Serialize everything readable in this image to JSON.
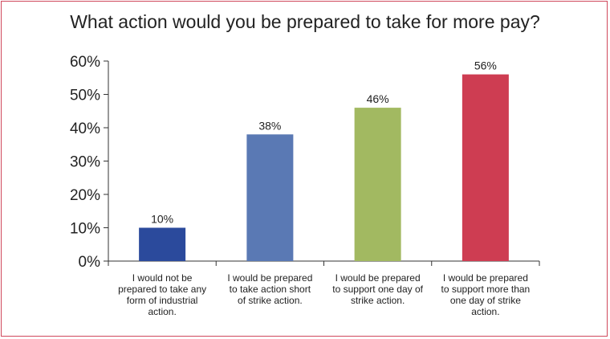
{
  "chart_data": {
    "type": "bar",
    "title": "What action would you be prepared to take for more pay?",
    "xlabel": "",
    "ylabel": "",
    "ylim": [
      0,
      60
    ],
    "yticks": [
      "0%",
      "10%",
      "20%",
      "30%",
      "40%",
      "50%",
      "60%"
    ],
    "categories": [
      "I would not be prepared to take any form of industrial action.",
      "I would be prepared to take action short of strike action.",
      "I would be prepared to support one day of strike action.",
      "I would be prepared to support more than one day of strike action."
    ],
    "category_lines": [
      [
        "I would not be",
        "prepared to take any",
        "form of industrial",
        "action."
      ],
      [
        "I would be prepared",
        "to take action short",
        "of strike action."
      ],
      [
        "I would be prepared",
        "to support one day of",
        "strike action."
      ],
      [
        "I would be prepared",
        "to support more than",
        "one day of strike",
        "action."
      ]
    ],
    "values": [
      10,
      38,
      46,
      56
    ],
    "data_labels": [
      "10%",
      "38%",
      "46%",
      "56%"
    ],
    "colors": [
      "#2b4a9c",
      "#5a79b4",
      "#a2b961",
      "#ce3d52"
    ],
    "grid": false,
    "legend": "none"
  },
  "frame_color": "#d0485c"
}
